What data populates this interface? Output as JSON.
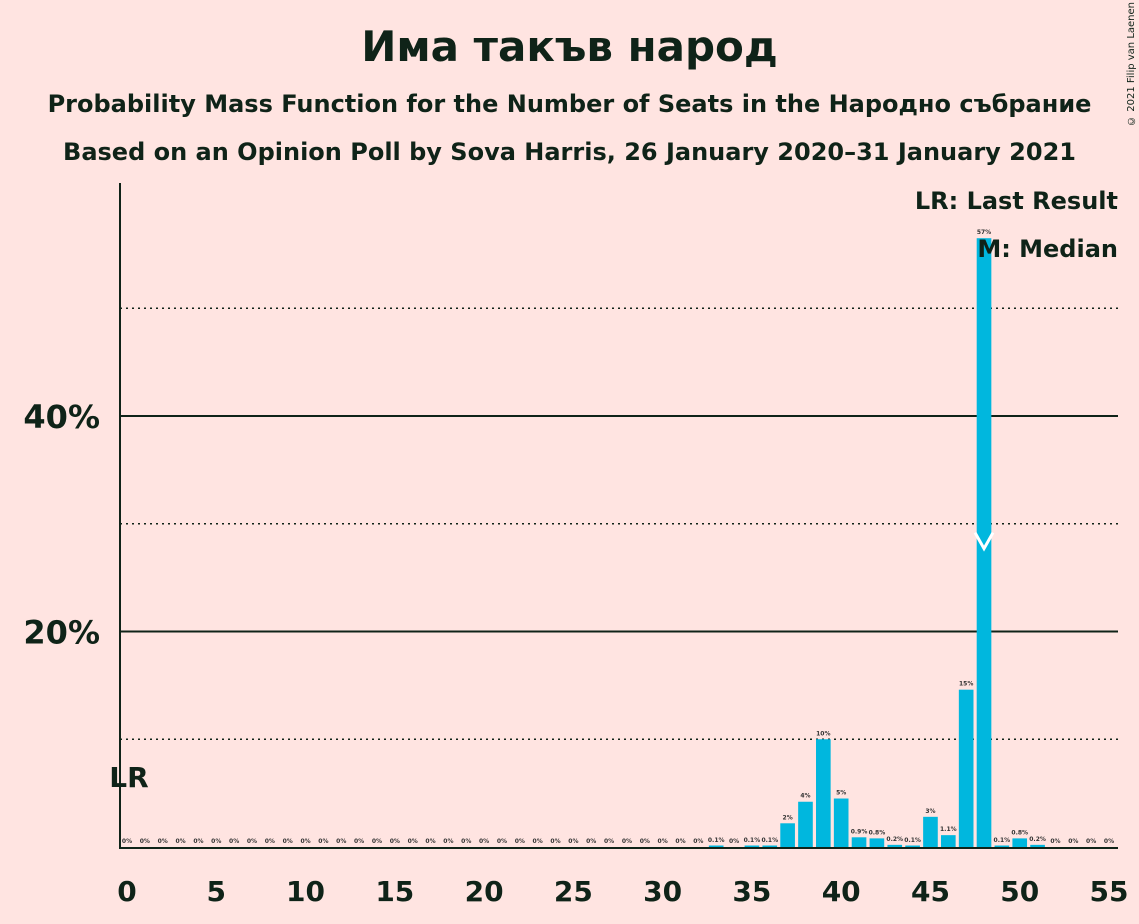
{
  "title": "Има такъв народ",
  "subtitle": "Probability Mass Function for the Number of Seats in the Народно събрание",
  "subtitle2": "Based on an Opinion Poll by Sova Harris, 26 January 2020–31 January 2021",
  "copyright": "© 2021 Filip van Laenen",
  "legend": {
    "last_result": "LR: Last Result",
    "median": "M: Median"
  },
  "colors": {
    "background": "#FFE4E1",
    "bar": "#00B7DE",
    "text": "#0f2318"
  },
  "chart_data": {
    "type": "bar",
    "xlim": [
      0,
      55
    ],
    "ylim": [
      0,
      60
    ],
    "x_ticks": [
      0,
      5,
      10,
      15,
      20,
      25,
      30,
      35,
      40,
      45,
      50,
      55
    ],
    "y_ticks": [
      {
        "value": 20,
        "label": "20%"
      },
      {
        "value": 40,
        "label": "40%"
      }
    ],
    "minor_gridlines": [
      10,
      30,
      50
    ],
    "last_result": {
      "seat": 0,
      "label": "LR"
    },
    "median": {
      "seat": 48,
      "label": "M"
    },
    "series": [
      {
        "values": [
          {
            "x": 0,
            "y": 0,
            "label": "0%"
          },
          {
            "x": 1,
            "y": 0,
            "label": "0%"
          },
          {
            "x": 2,
            "y": 0,
            "label": "0%"
          },
          {
            "x": 3,
            "y": 0,
            "label": "0%"
          },
          {
            "x": 4,
            "y": 0,
            "label": "0%"
          },
          {
            "x": 5,
            "y": 0,
            "label": "0%"
          },
          {
            "x": 6,
            "y": 0,
            "label": "0%"
          },
          {
            "x": 7,
            "y": 0,
            "label": "0%"
          },
          {
            "x": 8,
            "y": 0,
            "label": "0%"
          },
          {
            "x": 9,
            "y": 0,
            "label": "0%"
          },
          {
            "x": 10,
            "y": 0,
            "label": "0%"
          },
          {
            "x": 11,
            "y": 0,
            "label": "0%"
          },
          {
            "x": 12,
            "y": 0,
            "label": "0%"
          },
          {
            "x": 13,
            "y": 0,
            "label": "0%"
          },
          {
            "x": 14,
            "y": 0,
            "label": "0%"
          },
          {
            "x": 15,
            "y": 0,
            "label": "0%"
          },
          {
            "x": 16,
            "y": 0,
            "label": "0%"
          },
          {
            "x": 17,
            "y": 0,
            "label": "0%"
          },
          {
            "x": 18,
            "y": 0,
            "label": "0%"
          },
          {
            "x": 19,
            "y": 0,
            "label": "0%"
          },
          {
            "x": 20,
            "y": 0,
            "label": "0%"
          },
          {
            "x": 21,
            "y": 0,
            "label": "0%"
          },
          {
            "x": 22,
            "y": 0,
            "label": "0%"
          },
          {
            "x": 23,
            "y": 0,
            "label": "0%"
          },
          {
            "x": 24,
            "y": 0,
            "label": "0%"
          },
          {
            "x": 25,
            "y": 0,
            "label": "0%"
          },
          {
            "x": 26,
            "y": 0,
            "label": "0%"
          },
          {
            "x": 27,
            "y": 0,
            "label": "0%"
          },
          {
            "x": 28,
            "y": 0,
            "label": "0%"
          },
          {
            "x": 29,
            "y": 0,
            "label": "0%"
          },
          {
            "x": 30,
            "y": 0,
            "label": "0%"
          },
          {
            "x": 31,
            "y": 0,
            "label": "0%"
          },
          {
            "x": 32,
            "y": 0,
            "label": "0%"
          },
          {
            "x": 33,
            "y": 0.1,
            "label": "0.1%"
          },
          {
            "x": 34,
            "y": 0,
            "label": "0%"
          },
          {
            "x": 35,
            "y": 0.1,
            "label": "0.1%"
          },
          {
            "x": 36,
            "y": 0.1,
            "label": "0.1%"
          },
          {
            "x": 37,
            "y": 2.2,
            "label": "2%"
          },
          {
            "x": 38,
            "y": 4.2,
            "label": "4%"
          },
          {
            "x": 39,
            "y": 10,
            "label": "10%"
          },
          {
            "x": 40,
            "y": 4.5,
            "label": "5%"
          },
          {
            "x": 41,
            "y": 0.9,
            "label": "0.9%"
          },
          {
            "x": 42,
            "y": 0.8,
            "label": "0.8%"
          },
          {
            "x": 43,
            "y": 0.2,
            "label": "0.2%"
          },
          {
            "x": 44,
            "y": 0.1,
            "label": "0.1%"
          },
          {
            "x": 45,
            "y": 2.8,
            "label": "3%"
          },
          {
            "x": 46,
            "y": 1.1,
            "label": "1.1%"
          },
          {
            "x": 47,
            "y": 14.6,
            "label": "15%"
          },
          {
            "x": 48,
            "y": 56.5,
            "label": "57%"
          },
          {
            "x": 49,
            "y": 0.1,
            "label": "0.1%"
          },
          {
            "x": 50,
            "y": 0.8,
            "label": "0.8%"
          },
          {
            "x": 51,
            "y": 0.2,
            "label": "0.2%"
          },
          {
            "x": 52,
            "y": 0,
            "label": "0%"
          },
          {
            "x": 53,
            "y": 0,
            "label": "0%"
          },
          {
            "x": 54,
            "y": 0,
            "label": "0%"
          },
          {
            "x": 55,
            "y": 0,
            "label": "0%"
          }
        ]
      }
    ]
  }
}
